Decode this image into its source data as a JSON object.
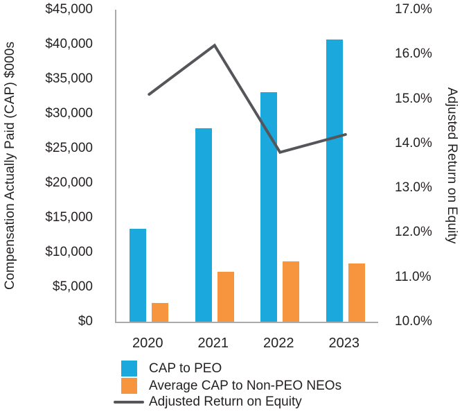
{
  "chart_data": {
    "type": "bar+line",
    "categories": [
      "2020",
      "2021",
      "2022",
      "2023"
    ],
    "series": [
      {
        "name": "CAP to PEO",
        "type": "bar",
        "axis": "left",
        "color": "#1BA8DC",
        "values": [
          13400,
          27900,
          33100,
          40700
        ]
      },
      {
        "name": "Average CAP to Non-PEO NEOs",
        "type": "bar",
        "axis": "left",
        "color": "#F6953D",
        "values": [
          2700,
          7200,
          8700,
          8400
        ]
      },
      {
        "name": "Adjusted Return on Equity",
        "type": "line",
        "axis": "right",
        "color": "#55565A",
        "values": [
          15.1,
          16.2,
          13.8,
          14.2
        ]
      }
    ],
    "left_axis": {
      "title": "Compensation Actually Paid (CAP) $000s",
      "min": 0,
      "max": 45000,
      "tick_step": 5000,
      "tick_labels": [
        "$0",
        "$5,000",
        "$10,000",
        "$15,000",
        "$20,000",
        "$25,000",
        "$30,000",
        "$35,000",
        "$40,000",
        "$45,000"
      ]
    },
    "right_axis": {
      "title": "Adjusted Return on Equity",
      "min": 10,
      "max": 17,
      "tick_step": 1,
      "tick_labels": [
        "10.0%",
        "11.0%",
        "12.0%",
        "13.0%",
        "14.0%",
        "15.0%",
        "16.0%",
        "17.0%"
      ]
    },
    "legend": {
      "position": "bottom-left",
      "items": [
        {
          "label": "CAP to PEO",
          "swatch": "square",
          "color": "#1BA8DC"
        },
        {
          "label": "Average CAP to Non-PEO NEOs",
          "swatch": "square",
          "color": "#F6953D"
        },
        {
          "label": "Adjusted Return on Equity",
          "swatch": "line",
          "color": "#55565A"
        }
      ]
    },
    "grid": "off",
    "title": ""
  },
  "colors": {
    "background": "#FFFFFF",
    "axis_line": "#A8AAAD",
    "text": "#231F20"
  }
}
